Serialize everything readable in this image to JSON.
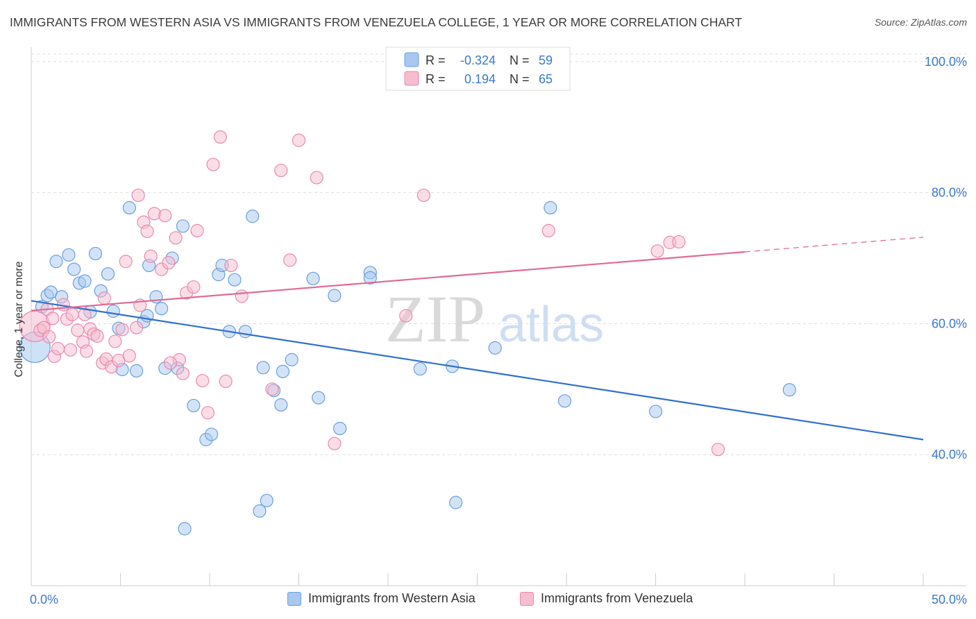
{
  "title": "IMMIGRANTS FROM WESTERN ASIA VS IMMIGRANTS FROM VENEZUELA COLLEGE, 1 YEAR OR MORE CORRELATION CHART",
  "source": "Source: ZipAtlas.com",
  "watermark": {
    "zip": "ZIP",
    "atlas": "atlas"
  },
  "colors": {
    "blue_fill": "#a8c8f0",
    "blue_stroke": "#6a9fdc",
    "blue_line": "#2f6fce",
    "pink_fill": "#f6bcd0",
    "pink_stroke": "#e98aab",
    "pink_line": "#e06b93",
    "axis_text": "#3b78d0",
    "grid": "#dddddd"
  },
  "chart_data": {
    "type": "scatter",
    "title": "IMMIGRANTS FROM WESTERN ASIA VS IMMIGRANTS FROM VENEZUELA COLLEGE, 1 YEAR OR MORE CORRELATION CHART",
    "xlabel": "",
    "ylabel": "College, 1 year or more",
    "xlim": [
      0,
      50
    ],
    "ylim": [
      20,
      102
    ],
    "x_tick_labels": [
      "0.0%",
      "50.0%"
    ],
    "y_ticks": [
      40,
      60,
      80,
      100
    ],
    "y_tick_labels": [
      "40.0%",
      "60.0%",
      "80.0%",
      "100.0%"
    ],
    "grid": true,
    "legend_stats": [
      {
        "r_label": "R =",
        "r_value": "-0.324",
        "n_label": "N =",
        "n_value": "59"
      },
      {
        "r_label": "R =",
        "r_value": "0.194",
        "n_label": "N =",
        "n_value": "65"
      }
    ],
    "series": [
      {
        "name": "Immigrants from Western Asia",
        "color": "blue",
        "trend": {
          "x0": 0,
          "y0": 63.5,
          "x1": 50,
          "y1": 42.3,
          "dash_from": 50
        },
        "points": [
          {
            "x": 0.2,
            "y": 56.4,
            "big": true
          },
          {
            "x": 0.6,
            "y": 62.6
          },
          {
            "x": 0.9,
            "y": 64.3
          },
          {
            "x": 1.1,
            "y": 64.8
          },
          {
            "x": 1.4,
            "y": 69.5
          },
          {
            "x": 1.7,
            "y": 64.1
          },
          {
            "x": 2.1,
            "y": 70.5
          },
          {
            "x": 2.4,
            "y": 68.3
          },
          {
            "x": 2.7,
            "y": 66.2
          },
          {
            "x": 3.0,
            "y": 66.5
          },
          {
            "x": 3.3,
            "y": 61.8
          },
          {
            "x": 3.6,
            "y": 70.7
          },
          {
            "x": 3.9,
            "y": 65.0
          },
          {
            "x": 4.3,
            "y": 67.6
          },
          {
            "x": 4.6,
            "y": 61.9
          },
          {
            "x": 4.9,
            "y": 59.3
          },
          {
            "x": 5.1,
            "y": 53.0
          },
          {
            "x": 5.5,
            "y": 77.7
          },
          {
            "x": 5.9,
            "y": 52.8
          },
          {
            "x": 6.3,
            "y": 60.3
          },
          {
            "x": 6.5,
            "y": 61.2
          },
          {
            "x": 6.6,
            "y": 68.9
          },
          {
            "x": 7.0,
            "y": 64.1
          },
          {
            "x": 7.3,
            "y": 62.3
          },
          {
            "x": 7.5,
            "y": 53.2
          },
          {
            "x": 7.9,
            "y": 70.0
          },
          {
            "x": 8.2,
            "y": 53.2
          },
          {
            "x": 8.5,
            "y": 74.9
          },
          {
            "x": 9.1,
            "y": 47.5
          },
          {
            "x": 9.8,
            "y": 42.3
          },
          {
            "x": 10.1,
            "y": 43.1
          },
          {
            "x": 10.5,
            "y": 67.5
          },
          {
            "x": 10.7,
            "y": 68.9
          },
          {
            "x": 11.1,
            "y": 58.8
          },
          {
            "x": 11.4,
            "y": 66.7
          },
          {
            "x": 12.0,
            "y": 58.8
          },
          {
            "x": 12.4,
            "y": 76.4
          },
          {
            "x": 13.0,
            "y": 53.3
          },
          {
            "x": 12.8,
            "y": 31.4
          },
          {
            "x": 13.2,
            "y": 33.0
          },
          {
            "x": 13.6,
            "y": 49.8
          },
          {
            "x": 14.0,
            "y": 47.6
          },
          {
            "x": 14.1,
            "y": 52.7
          },
          {
            "x": 14.6,
            "y": 54.5
          },
          {
            "x": 15.8,
            "y": 66.9
          },
          {
            "x": 16.1,
            "y": 48.7
          },
          {
            "x": 17.0,
            "y": 64.3
          },
          {
            "x": 17.3,
            "y": 44.0
          },
          {
            "x": 19.0,
            "y": 67.8
          },
          {
            "x": 19.0,
            "y": 67.0
          },
          {
            "x": 21.8,
            "y": 53.1
          },
          {
            "x": 23.6,
            "y": 53.5
          },
          {
            "x": 23.8,
            "y": 32.7
          },
          {
            "x": 26.0,
            "y": 56.3
          },
          {
            "x": 29.1,
            "y": 77.7
          },
          {
            "x": 29.9,
            "y": 48.2
          },
          {
            "x": 35.0,
            "y": 46.6
          },
          {
            "x": 42.5,
            "y": 49.9
          },
          {
            "x": 8.6,
            "y": 28.7
          }
        ]
      },
      {
        "name": "Immigrants from Venezuela",
        "color": "pink",
        "trend": {
          "x0": 0,
          "y0": 62.0,
          "x1": 50,
          "y1": 73.2,
          "dash_from": 40
        },
        "points": [
          {
            "x": 0.2,
            "y": 59.6,
            "big": true
          },
          {
            "x": 0.5,
            "y": 59.0
          },
          {
            "x": 0.7,
            "y": 59.4
          },
          {
            "x": 0.9,
            "y": 62.2
          },
          {
            "x": 1.0,
            "y": 58.0
          },
          {
            "x": 1.3,
            "y": 55.0
          },
          {
            "x": 1.5,
            "y": 56.2
          },
          {
            "x": 1.8,
            "y": 62.9
          },
          {
            "x": 2.0,
            "y": 60.7
          },
          {
            "x": 2.3,
            "y": 61.4
          },
          {
            "x": 2.6,
            "y": 59.0
          },
          {
            "x": 2.9,
            "y": 57.2
          },
          {
            "x": 3.1,
            "y": 55.8
          },
          {
            "x": 3.3,
            "y": 59.2
          },
          {
            "x": 3.5,
            "y": 58.4
          },
          {
            "x": 3.7,
            "y": 58.1
          },
          {
            "x": 4.0,
            "y": 54.0
          },
          {
            "x": 4.2,
            "y": 54.6
          },
          {
            "x": 4.5,
            "y": 53.4
          },
          {
            "x": 4.7,
            "y": 57.3
          },
          {
            "x": 4.9,
            "y": 54.4
          },
          {
            "x": 5.1,
            "y": 59.1
          },
          {
            "x": 5.3,
            "y": 69.5
          },
          {
            "x": 5.5,
            "y": 55.1
          },
          {
            "x": 5.9,
            "y": 59.4
          },
          {
            "x": 6.0,
            "y": 79.6
          },
          {
            "x": 6.3,
            "y": 75.5
          },
          {
            "x": 6.5,
            "y": 74.1
          },
          {
            "x": 6.7,
            "y": 70.3
          },
          {
            "x": 6.9,
            "y": 76.8
          },
          {
            "x": 7.3,
            "y": 68.3
          },
          {
            "x": 7.5,
            "y": 76.5
          },
          {
            "x": 7.7,
            "y": 69.3
          },
          {
            "x": 8.1,
            "y": 73.1
          },
          {
            "x": 8.5,
            "y": 52.4
          },
          {
            "x": 8.7,
            "y": 64.7
          },
          {
            "x": 9.1,
            "y": 65.6
          },
          {
            "x": 9.6,
            "y": 51.3
          },
          {
            "x": 9.9,
            "y": 46.4
          },
          {
            "x": 10.2,
            "y": 84.3
          },
          {
            "x": 10.6,
            "y": 88.5
          },
          {
            "x": 10.9,
            "y": 51.2
          },
          {
            "x": 11.2,
            "y": 68.9
          },
          {
            "x": 11.8,
            "y": 64.2
          },
          {
            "x": 14.0,
            "y": 83.4
          },
          {
            "x": 14.5,
            "y": 69.7
          },
          {
            "x": 15.0,
            "y": 88.0
          },
          {
            "x": 16.0,
            "y": 82.3
          },
          {
            "x": 17.0,
            "y": 41.7
          },
          {
            "x": 21.0,
            "y": 61.2
          },
          {
            "x": 22.0,
            "y": 79.6
          },
          {
            "x": 29.0,
            "y": 74.2
          },
          {
            "x": 35.1,
            "y": 71.1
          },
          {
            "x": 35.8,
            "y": 72.4
          },
          {
            "x": 36.3,
            "y": 72.5
          },
          {
            "x": 38.5,
            "y": 40.8
          },
          {
            "x": 8.3,
            "y": 54.5
          },
          {
            "x": 7.8,
            "y": 54.0
          },
          {
            "x": 9.3,
            "y": 74.2
          },
          {
            "x": 13.5,
            "y": 50.0
          },
          {
            "x": 4.1,
            "y": 63.9
          },
          {
            "x": 3.0,
            "y": 61.4
          },
          {
            "x": 6.1,
            "y": 62.8
          },
          {
            "x": 1.2,
            "y": 60.8
          },
          {
            "x": 2.2,
            "y": 56.0
          }
        ]
      }
    ]
  },
  "legend": {
    "items": [
      "Immigrants from Western Asia",
      "Immigrants from Venezuela"
    ]
  }
}
